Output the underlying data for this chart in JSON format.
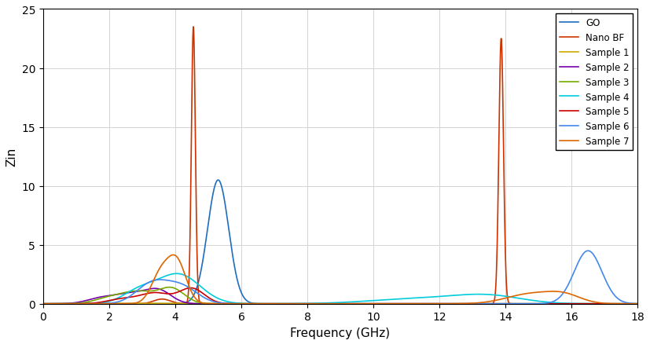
{
  "title": "",
  "xlabel": "Frequency (GHz)",
  "ylabel": "Zin",
  "xlim": [
    0,
    18
  ],
  "ylim": [
    0,
    25
  ],
  "xticks": [
    0,
    2,
    4,
    6,
    8,
    10,
    12,
    14,
    16,
    18
  ],
  "yticks": [
    0,
    5,
    10,
    15,
    20,
    25
  ],
  "series": {
    "GO": {
      "color": "#1f6dbf",
      "lw": 1.2
    },
    "Nano BF": {
      "color": "#cc3300",
      "lw": 1.2
    },
    "Sample 1": {
      "color": "#ccaa00",
      "lw": 1.2
    },
    "Sample 2": {
      "color": "#7700aa",
      "lw": 1.2
    },
    "Sample 3": {
      "color": "#77aa00",
      "lw": 1.2
    },
    "Sample 4": {
      "color": "#00ccdd",
      "lw": 1.2
    },
    "Sample 5": {
      "color": "#cc0000",
      "lw": 1.2
    },
    "Sample 6": {
      "color": "#4488ee",
      "lw": 1.2
    },
    "Sample 7": {
      "color": "#dd6600",
      "lw": 1.2
    }
  }
}
